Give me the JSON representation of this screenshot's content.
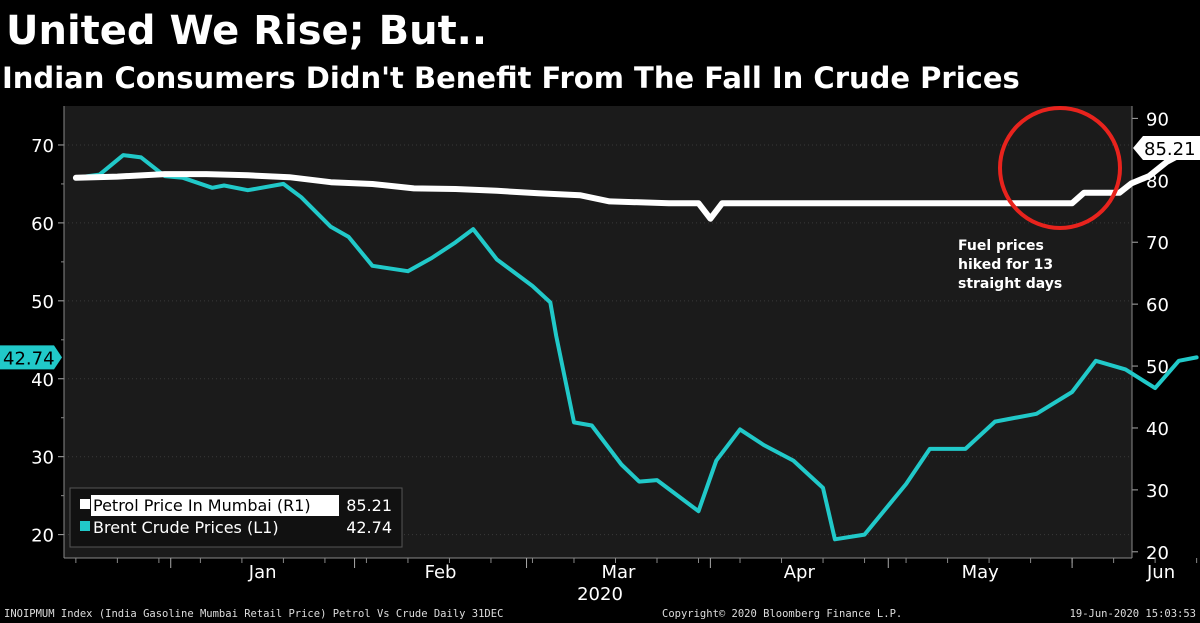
{
  "header": {
    "title": "United We Rise; But..",
    "subtitle": "Indian Consumers Didn't Benefit From The Fall In Crude Prices"
  },
  "footer": {
    "left": "INOIPMUM Index (India Gasoline Mumbai Retail Price) Petrol Vs Crude  Daily 31DEC",
    "center": "Copyright© 2020 Bloomberg Finance L.P.",
    "right": "19-Jun-2020 15:03:53"
  },
  "colors": {
    "background": "#000000",
    "plot_background": "#1b1b1b",
    "petrol": "#ffffff",
    "brent": "#21c9c9",
    "highlight_circle": "#e8231d"
  },
  "chart_data": {
    "type": "line",
    "x_axis": {
      "year_label": "2020",
      "tick_labels": [
        "Jan",
        "Feb",
        "Mar",
        "Apr",
        "May",
        "Jun"
      ]
    },
    "left_axis": {
      "range": [
        17,
        75
      ],
      "ticks": [
        20,
        30,
        40,
        50,
        60,
        70
      ]
    },
    "right_axis": {
      "range": [
        19,
        92
      ],
      "ticks": [
        20,
        30,
        40,
        50,
        60,
        70,
        80,
        90
      ]
    },
    "legend": {
      "placement": "bottom-left",
      "entries": [
        {
          "label": "Petrol Price In Mumbai (R1)",
          "value": "85.21"
        },
        {
          "label": "Brent Crude Prices (L1)",
          "value": "42.74"
        }
      ]
    },
    "last_value_labels": {
      "petrol": "85.21",
      "brent": "42.74"
    },
    "annotation": {
      "text": [
        "Fuel prices",
        "hiked for 13",
        "straight days"
      ]
    },
    "series": [
      {
        "name": "Petrol Price In Mumbai (R1)",
        "axis": "right",
        "points": [
          [
            "2019-12-16",
            80.4
          ],
          [
            "2019-12-23",
            80.6
          ],
          [
            "2019-12-31",
            81.0
          ],
          [
            "2020-01-07",
            81.0
          ],
          [
            "2020-01-14",
            80.8
          ],
          [
            "2020-01-21",
            80.5
          ],
          [
            "2020-01-28",
            79.7
          ],
          [
            "2020-02-04",
            79.4
          ],
          [
            "2020-02-11",
            78.7
          ],
          [
            "2020-02-18",
            78.6
          ],
          [
            "2020-02-25",
            78.3
          ],
          [
            "2020-03-03",
            77.9
          ],
          [
            "2020-03-10",
            77.6
          ],
          [
            "2020-03-15",
            76.6
          ],
          [
            "2020-03-25",
            76.3
          ],
          [
            "2020-03-30",
            76.3
          ],
          [
            "2020-04-01",
            73.8
          ],
          [
            "2020-04-03",
            76.3
          ],
          [
            "2020-04-15",
            76.3
          ],
          [
            "2020-05-15",
            76.3
          ],
          [
            "2020-06-01",
            76.3
          ],
          [
            "2020-06-03",
            78.0
          ],
          [
            "2020-06-09",
            78.0
          ],
          [
            "2020-06-11",
            79.5
          ],
          [
            "2020-06-14",
            80.7
          ],
          [
            "2020-06-17",
            83.0
          ],
          [
            "2020-06-19",
            84.0
          ],
          [
            "2020-06-22",
            85.21
          ]
        ]
      },
      {
        "name": "Brent Crude Prices (L1)",
        "axis": "left",
        "points": [
          [
            "2019-12-16",
            65.8
          ],
          [
            "2019-12-20",
            66.2
          ],
          [
            "2019-12-24",
            68.7
          ],
          [
            "2019-12-27",
            68.4
          ],
          [
            "2019-12-31",
            66.0
          ],
          [
            "2020-01-03",
            65.8
          ],
          [
            "2020-01-08",
            64.5
          ],
          [
            "2020-01-10",
            64.8
          ],
          [
            "2020-01-14",
            64.2
          ],
          [
            "2020-01-20",
            65.0
          ],
          [
            "2020-01-23",
            63.3
          ],
          [
            "2020-01-28",
            59.5
          ],
          [
            "2020-01-31",
            58.2
          ],
          [
            "2020-02-04",
            54.5
          ],
          [
            "2020-02-10",
            53.8
          ],
          [
            "2020-02-14",
            55.5
          ],
          [
            "2020-02-18",
            57.5
          ],
          [
            "2020-02-21",
            59.2
          ],
          [
            "2020-02-25",
            55.3
          ],
          [
            "2020-03-02",
            51.9
          ],
          [
            "2020-03-05",
            49.8
          ],
          [
            "2020-03-06",
            45.5
          ],
          [
            "2020-03-09",
            34.4
          ],
          [
            "2020-03-12",
            34.0
          ],
          [
            "2020-03-17",
            29.0
          ],
          [
            "2020-03-20",
            26.8
          ],
          [
            "2020-03-23",
            27.0
          ],
          [
            "2020-03-30",
            23.0
          ],
          [
            "2020-04-02",
            29.5
          ],
          [
            "2020-04-06",
            33.5
          ],
          [
            "2020-04-10",
            31.5
          ],
          [
            "2020-04-15",
            29.5
          ],
          [
            "2020-04-20",
            26.0
          ],
          [
            "2020-04-22",
            19.4
          ],
          [
            "2020-04-27",
            20.0
          ],
          [
            "2020-05-04",
            26.5
          ],
          [
            "2020-05-08",
            31.0
          ],
          [
            "2020-05-14",
            31.0
          ],
          [
            "2020-05-19",
            34.5
          ],
          [
            "2020-05-26",
            35.5
          ],
          [
            "2020-06-01",
            38.3
          ],
          [
            "2020-06-05",
            42.3
          ],
          [
            "2020-06-10",
            41.2
          ],
          [
            "2020-06-15",
            38.8
          ],
          [
            "2020-06-19",
            42.3
          ],
          [
            "2020-06-22",
            42.74
          ]
        ]
      }
    ]
  }
}
